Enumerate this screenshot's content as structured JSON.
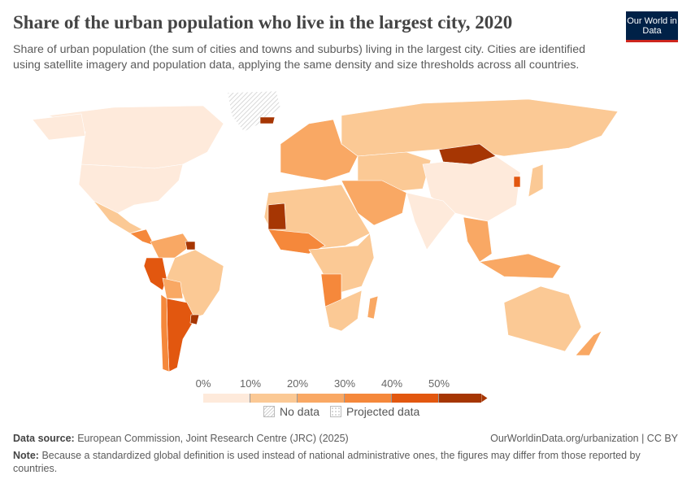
{
  "header": {
    "title": "Share of the urban population who live in the largest city, 2020",
    "subtitle": "Share of urban population (the sum of cities and towns and suburbs) living in the largest city. Cities are identified using satellite imagery and population data, applying the same density and size thresholds across all countries.",
    "logo": "Our World in Data"
  },
  "legend": {
    "ticks": [
      "0%",
      "10%",
      "20%",
      "30%",
      "40%",
      "50%"
    ],
    "colors": [
      "#feeadb",
      "#fbc995",
      "#f9a864",
      "#f5883b",
      "#e2570f",
      "#a63603"
    ],
    "no_data": "No data",
    "projected": "Projected data"
  },
  "map_data": {
    "Canada": "0-10%",
    "United States": "0-10%",
    "Mexico": "10-20%",
    "Brazil": "10-20%",
    "Peru": "40-50%",
    "Argentina": "40-50%",
    "Chile": "30-40%",
    "Uruguay": "50%+",
    "Suriname": "50%+",
    "Russia": "10-20%",
    "China": "0-10%",
    "India": "0-10%",
    "Mongolia": "50%+",
    "Australia": "10-20%",
    "Mauritania": "50%+",
    "Angola": "30-40%",
    "Greenland": "No data"
  },
  "footer": {
    "source_label": "Data source:",
    "source": "European Commission, Joint Research Centre (JRC) (2025)",
    "url": "OurWorldinData.org/urbanization | CC BY",
    "note_label": "Note:",
    "note": "Because a standardized global definition is used instead of national administrative ones, the figures may differ from those reported by countries."
  }
}
